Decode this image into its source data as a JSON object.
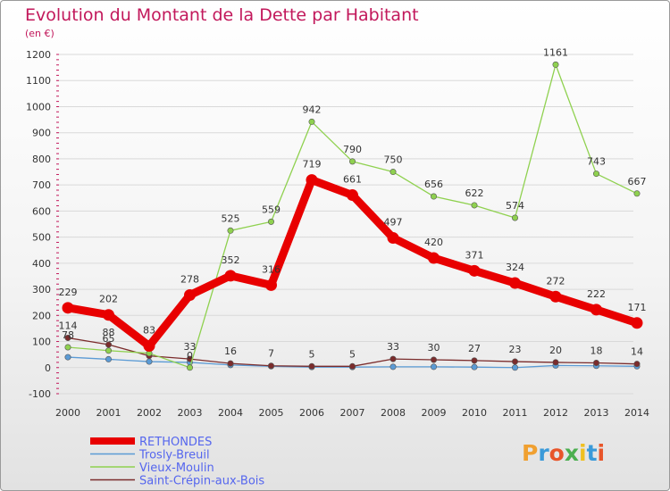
{
  "chart_data": {
    "type": "line",
    "title": "Evolution du Montant de la Dette par Habitant",
    "subtitle": "(en €)",
    "x": [
      "2000",
      "2001",
      "2002",
      "2003",
      "2004",
      "2005",
      "2006",
      "2007",
      "2008",
      "2009",
      "2010",
      "2011",
      "2012",
      "2013",
      "2014"
    ],
    "ylim": [
      -100,
      1200
    ],
    "yticks": [
      -100,
      0,
      100,
      200,
      300,
      400,
      500,
      600,
      700,
      800,
      900,
      1000,
      1100,
      1200
    ],
    "grid": true,
    "legend_position": "bottom-left",
    "series": [
      {
        "name": "RETHONDES",
        "color": "#e80000",
        "values": [
          229,
          202,
          83,
          278,
          352,
          316,
          719,
          661,
          497,
          420,
          371,
          324,
          272,
          222,
          171
        ],
        "labels": [
          "229",
          "202",
          "83",
          "278",
          "352",
          "316",
          "719",
          "661",
          "497",
          "420",
          "371",
          "324",
          "272",
          "222",
          "171"
        ]
      },
      {
        "name": "Trosly-Breuil",
        "color": "#5b9bd5",
        "values": [
          40,
          32,
          23,
          20,
          10,
          5,
          2,
          2,
          3,
          3,
          2,
          0,
          8,
          7,
          5
        ],
        "labels": [
          "",
          "",
          "",
          "",
          "",
          "",
          "",
          "",
          "",
          "",
          "",
          "",
          "",
          "",
          ""
        ]
      },
      {
        "name": "Vieux-Moulin",
        "color": "#8fd14f",
        "values": [
          78,
          65,
          55,
          0,
          525,
          559,
          942,
          790,
          750,
          656,
          622,
          574,
          1161,
          743,
          667
        ],
        "labels": [
          "78",
          "65",
          "",
          "0",
          "525",
          "559",
          "942",
          "790",
          "750",
          "656",
          "622",
          "574",
          "1161",
          "743",
          "667"
        ]
      },
      {
        "name": "Saint-Crépin-aux-Bois",
        "color": "#7b2c2c",
        "values": [
          114,
          88,
          45,
          33,
          16,
          7,
          5,
          5,
          33,
          30,
          27,
          23,
          20,
          18,
          14
        ],
        "labels": [
          "114",
          "88",
          "",
          "33",
          "16",
          "7",
          "5",
          "5",
          "33",
          "30",
          "27",
          "23",
          "20",
          "18",
          "14"
        ]
      }
    ]
  },
  "brand": {
    "logo_text": "Proxiti"
  }
}
